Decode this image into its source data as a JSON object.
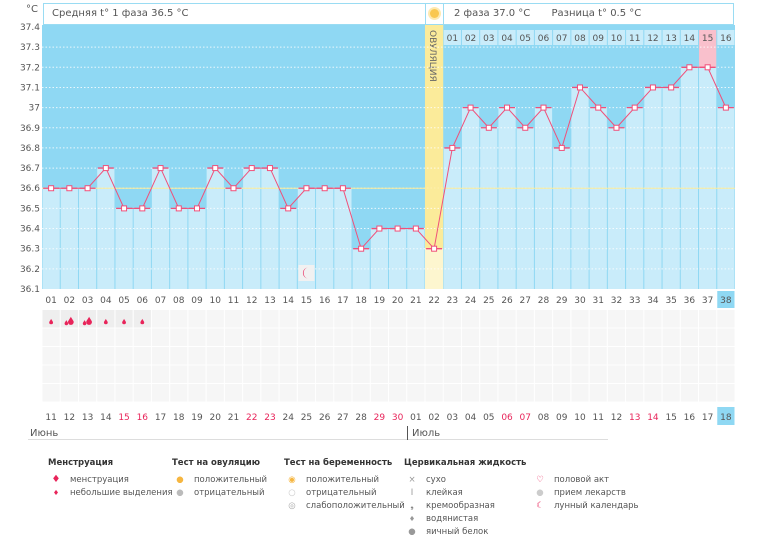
{
  "header": {
    "unit": "°C",
    "phase1_avg": "Средняя t° 1 фаза 36.5 °C",
    "phase2_avg": "2 фаза 37.0 °C",
    "diff": "Разница t° 0.5 °C",
    "ovulation_label": "ОВУЛЯЦИЯ"
  },
  "colors": {
    "plot_bg": "#8fd8f3",
    "bar": "#c9ecfa",
    "line": "#f0507a",
    "ovulation": "#fbeb9a",
    "phase2_highlight": "#f9c0cc",
    "weekend": "#e8245a"
  },
  "chart_data": {
    "type": "line",
    "ylabel": "°C",
    "ylim": [
      36.1,
      37.4
    ],
    "yticks": [
      "37.4",
      "37.3",
      "37.2",
      "37.1",
      "37",
      "36.9",
      "36.8",
      "36.7",
      "36.6",
      "36.5",
      "36.4",
      "36.3",
      "36.2",
      "36.1"
    ],
    "cycle_days": [
      "01",
      "02",
      "03",
      "04",
      "05",
      "06",
      "07",
      "08",
      "09",
      "10",
      "11",
      "12",
      "13",
      "14",
      "15",
      "16",
      "17",
      "18",
      "19",
      "20",
      "21",
      "22",
      "23",
      "24",
      "25",
      "26",
      "27",
      "28",
      "29",
      "30",
      "31",
      "32",
      "33",
      "34",
      "35",
      "36",
      "37",
      "38"
    ],
    "phase2_days": [
      "01",
      "02",
      "03",
      "04",
      "05",
      "06",
      "07",
      "08",
      "09",
      "10",
      "11",
      "12",
      "13",
      "14",
      "15",
      "16"
    ],
    "temperatures": [
      36.6,
      36.6,
      36.6,
      36.7,
      36.5,
      36.5,
      36.7,
      36.5,
      36.5,
      36.7,
      36.6,
      36.7,
      36.7,
      36.5,
      36.6,
      36.6,
      36.6,
      36.3,
      36.4,
      36.4,
      36.4,
      36.3,
      36.8,
      37.0,
      36.9,
      37.0,
      36.9,
      37.0,
      36.8,
      37.1,
      37.0,
      36.9,
      37.0,
      37.1,
      37.1,
      37.2,
      37.2,
      37.0
    ],
    "ovulation_day": 22,
    "coverline": 36.6,
    "dates": [
      "11",
      "12",
      "13",
      "14",
      "15",
      "16",
      "17",
      "18",
      "19",
      "20",
      "21",
      "22",
      "23",
      "24",
      "25",
      "26",
      "27",
      "28",
      "29",
      "30",
      "01",
      "02",
      "03",
      "04",
      "05",
      "06",
      "07",
      "08",
      "09",
      "10",
      "11",
      "12",
      "13",
      "14",
      "15",
      "16",
      "17",
      "18"
    ],
    "weekend_dates_index": [
      4,
      5,
      11,
      12,
      18,
      19,
      25,
      26,
      32,
      33
    ],
    "months": [
      "Июнь",
      "Июль"
    ],
    "menstruation": [
      1,
      2,
      2,
      1,
      1,
      1
    ],
    "moon_day": 15
  },
  "legend": {
    "menstruation": {
      "title": "Менструация",
      "items": [
        "менструация",
        "небольшие выделения"
      ]
    },
    "ovulation_test": {
      "title": "Тест на овуляцию",
      "items": [
        "положительный",
        "отрицательный"
      ]
    },
    "pregnancy_test": {
      "title": "Тест на беременность",
      "items": [
        "положительный",
        "отрицательный",
        "слабоположительный"
      ]
    },
    "cervical": {
      "title": "Цервикальная жидкость",
      "items": [
        "сухо",
        "клейкая",
        "кремообразная",
        "водянистая",
        "яичный белок"
      ]
    },
    "other": {
      "items": [
        "половой акт",
        "прием лекарств",
        "лунный календарь"
      ]
    }
  }
}
